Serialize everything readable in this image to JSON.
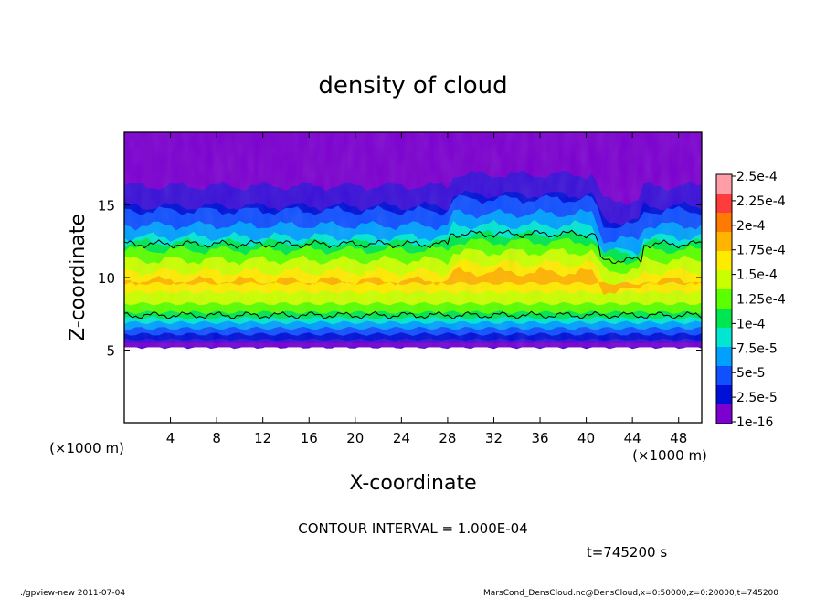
{
  "chart_data": {
    "type": "heatmap",
    "title": "density of cloud",
    "xlabel": "X-coordinate",
    "ylabel": "Z-coordinate",
    "x_unit": "(×1000 m)",
    "y_unit": "(×1000 m)",
    "xlim": [
      0,
      50
    ],
    "ylim": [
      0,
      20
    ],
    "x_ticks": [
      "4",
      "8",
      "12",
      "16",
      "20",
      "24",
      "28",
      "32",
      "36",
      "40",
      "44",
      "48"
    ],
    "y_ticks": [
      "5",
      "10",
      "15"
    ],
    "colorbar": {
      "labels": [
        "2.5e-4",
        "2.25e-4",
        "2e-4",
        "1.75e-4",
        "1.5e-4",
        "1.25e-4",
        "1e-4",
        "7.5e-5",
        "5e-5",
        "2.5e-5",
        "1e-16"
      ],
      "colors": [
        "#ff9ea6",
        "#ff3c3c",
        "#ff7a00",
        "#ffb400",
        "#ffeb00",
        "#c9ff00",
        "#5aff00",
        "#00e650",
        "#00e6d2",
        "#00a0ff",
        "#1050ff",
        "#0010d8",
        "#7c00d0"
      ]
    },
    "cloud_layer": {
      "z_bottom": 5.2,
      "z_core_low": 7.2,
      "z_core_high": 12.4,
      "z_top": 19.5,
      "peak_value": "2e-4"
    },
    "contour_value": "1e-4"
  },
  "labels": {
    "contour_interval": "CONTOUR INTERVAL = 1.000E-04",
    "time": "t=745200 s",
    "footer_left": "./gpview-new   2011-07-04",
    "footer_right": "MarsCond_DensCloud.nc@DensCloud,x=0:50000,z=0:20000,t=745200"
  }
}
